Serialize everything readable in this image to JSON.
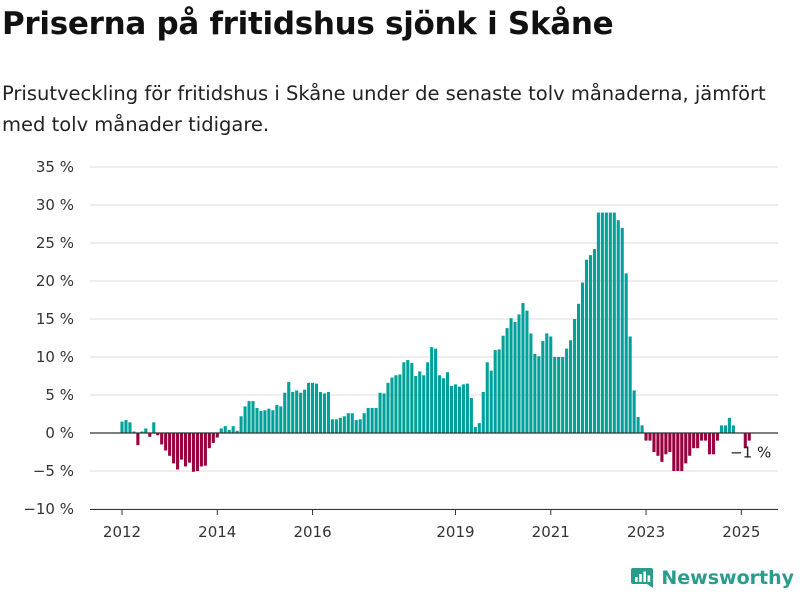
{
  "header": {
    "title": "Priserna på fritidshus sjönk i Skåne",
    "subtitle": "Prisutveckling för fritidshus i Skåne under de senaste tolv månaderna, jämfört med tolv månader tidigare."
  },
  "brand": {
    "name": "Newsworthy",
    "icon": "newsworthy-logo-icon"
  },
  "colors": {
    "positive": "#00a19a",
    "negative": "#990040",
    "grid": "#dddddd",
    "axis": "#333333",
    "brand": "#2a9c8c"
  },
  "chart_data": {
    "type": "bar",
    "title": "Priserna på fritidshus sjönk i Skåne",
    "xlabel": "",
    "ylabel": "",
    "ylim": [
      -10,
      35
    ],
    "yticks": [
      -10,
      -5,
      0,
      5,
      10,
      15,
      20,
      25,
      30,
      35
    ],
    "ytick_labels": [
      "−10 %",
      "−5 %",
      "0 %",
      "5 %",
      "10 %",
      "15 %",
      "20 %",
      "25 %",
      "30 %",
      "35 %"
    ],
    "grid": true,
    "start": "2012-01",
    "frequency": "monthly",
    "x_ticks": [
      "2012-01",
      "2014-01",
      "2016-01",
      "2019-01",
      "2021-01",
      "2023-01",
      "2025-01"
    ],
    "x_tick_labels": [
      "2012",
      "2014",
      "2016",
      "2019",
      "2021",
      "2023",
      "2025"
    ],
    "annotation": {
      "x": "2025-03",
      "text": "−1 %"
    },
    "values": [
      1.5,
      1.7,
      1.4,
      0.2,
      -1.6,
      0.2,
      0.6,
      -0.5,
      1.4,
      -0.3,
      -1.5,
      -2.3,
      -3.0,
      -4.0,
      -4.8,
      -3.5,
      -4.4,
      -3.9,
      -5.1,
      -5.0,
      -4.4,
      -4.3,
      -2.0,
      -1.3,
      -0.6,
      0.6,
      0.9,
      0.4,
      0.9,
      0.3,
      2.2,
      3.5,
      4.2,
      4.2,
      3.3,
      2.9,
      3.0,
      3.2,
      3.0,
      3.7,
      3.5,
      5.3,
      6.7,
      5.4,
      5.6,
      5.3,
      5.7,
      6.6,
      6.6,
      6.5,
      5.4,
      5.2,
      5.4,
      1.8,
      1.8,
      2.0,
      2.2,
      2.6,
      2.6,
      1.7,
      1.8,
      2.6,
      3.3,
      3.3,
      3.3,
      5.3,
      5.2,
      6.6,
      7.3,
      7.6,
      7.7,
      9.3,
      9.6,
      9.2,
      7.5,
      8.1,
      7.6,
      9.3,
      11.3,
      11.1,
      7.6,
      7.2,
      8.0,
      6.2,
      6.4,
      6.1,
      6.4,
      6.5,
      4.6,
      0.8,
      1.3,
      5.4,
      9.3,
      8.2,
      10.9,
      11.0,
      12.8,
      13.8,
      15.1,
      14.6,
      15.6,
      17.1,
      16.1,
      13.1,
      10.4,
      10.1,
      12.1,
      13.1,
      12.7,
      10.0,
      10.0,
      10.0,
      11.1,
      12.2,
      15.0,
      17.0,
      19.8,
      22.8,
      23.4,
      24.2,
      29.0,
      29.0,
      29.0,
      29.0,
      29.0,
      28.0,
      27.0,
      21.0,
      12.7,
      5.6,
      2.1,
      1.0,
      -1.0,
      -1.0,
      -2.5,
      -3.0,
      -3.8,
      -2.8,
      -2.5,
      -5.0,
      -5.0,
      -5.0,
      -4.0,
      -3.0,
      -2.0,
      -2.0,
      -1.0,
      -1.0,
      -2.8,
      -2.8,
      -1.0,
      1.0,
      1.0,
      2.0,
      1.0,
      0,
      0,
      -2.0,
      -1.0
    ]
  }
}
